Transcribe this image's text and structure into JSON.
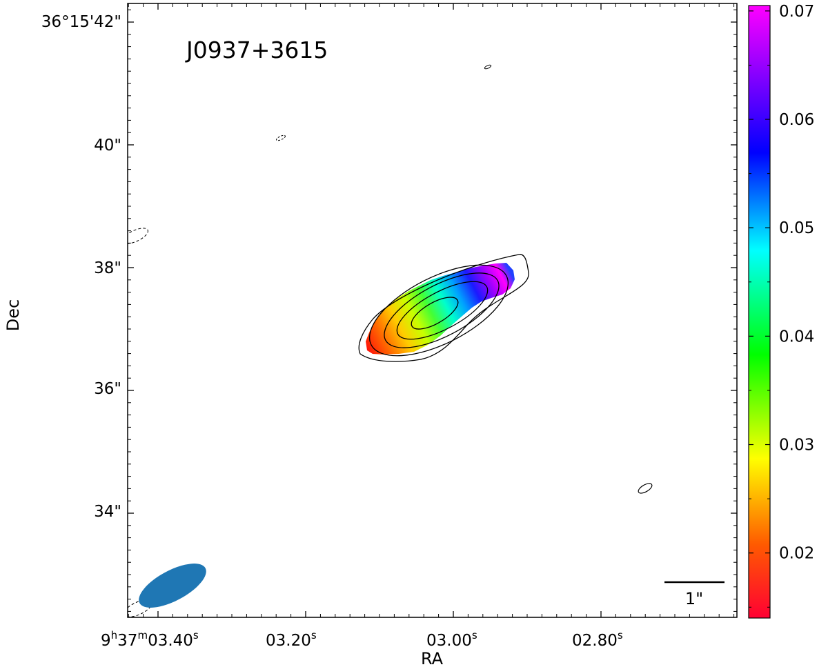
{
  "chart_data": {
    "type": "heatmap",
    "title": "J0937+3615",
    "xlabel": "RA",
    "ylabel": "Dec",
    "x_ticks": [
      {
        "label": "9",
        "sup1": "h",
        "mid1": "37",
        "sup2": "m",
        "mid2": "03.40",
        "sup3": "s"
      },
      {
        "label": "03.20",
        "sup1": "s"
      },
      {
        "label": "03.00",
        "sup1": "s"
      },
      {
        "label": "02.80",
        "sup1": "s"
      }
    ],
    "y_ticks": [
      "36°15'42\"",
      "40\"",
      "38\"",
      "36\"",
      "34\""
    ],
    "colorbar": {
      "range": [
        0.014,
        0.0705
      ],
      "ticks": [
        "0.02",
        "0.03",
        "0.04",
        "0.05",
        "0.06",
        "0.07"
      ],
      "tick_values": [
        0.02,
        0.03,
        0.04,
        0.05,
        0.06,
        0.07
      ],
      "colormap": "gist_rainbow",
      "colors": [
        "#ff0033",
        "#ff5a00",
        "#ffff00",
        "#00ff00",
        "#00ffff",
        "#0000ff",
        "#ff00ff"
      ]
    },
    "scale_bar_label": "1\"",
    "beam_color": "#1f77b4",
    "contour_color": "#000000",
    "heatmap_description_values": {
      "southeast_end_value": 0.015,
      "center_value": 0.035,
      "northwest_end_value": 0.068
    },
    "grid": false
  }
}
